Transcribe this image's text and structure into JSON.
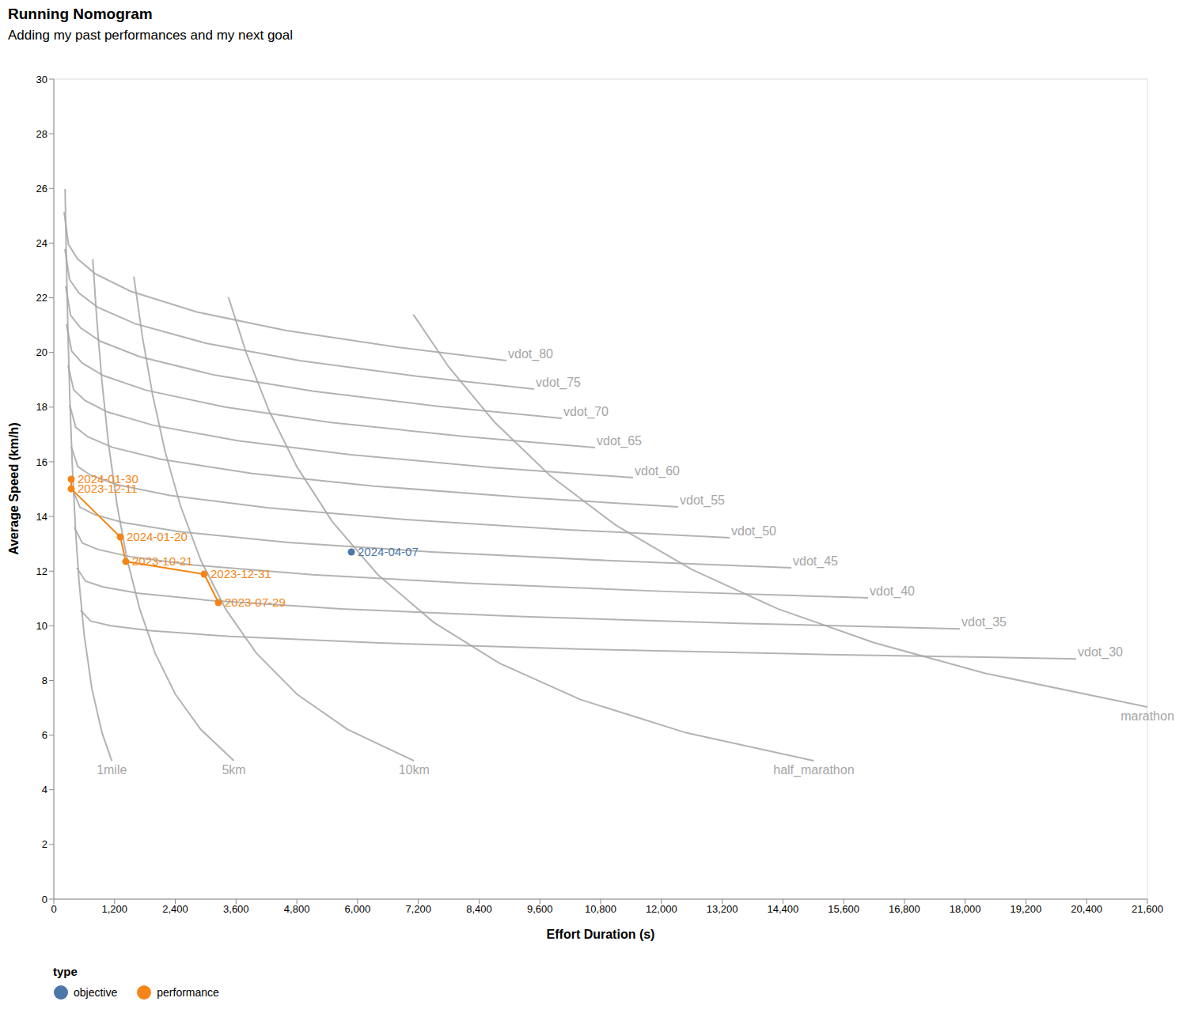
{
  "chart_data": {
    "type": "line",
    "title": "Running Nomogram",
    "subtitle": "Adding my past performances and my next goal",
    "x_label": "Effort Duration (s)",
    "y_label": "Average Speed (km/h)",
    "xlim": [
      0,
      21600
    ],
    "xticks": [
      0,
      {
        "value": 1200,
        "label": "1,200"
      },
      {
        "value": 2400,
        "label": "2,400"
      },
      {
        "value": 3600,
        "label": "3,600"
      },
      {
        "value": 4800,
        "label": "4,800"
      },
      {
        "value": 6000,
        "label": "6,000"
      },
      {
        "value": 7200,
        "label": "7,200"
      },
      {
        "value": 8400,
        "label": "8,400"
      },
      {
        "value": 9600,
        "label": "9,600"
      },
      {
        "value": 10800,
        "label": "10,800"
      },
      {
        "value": 12000,
        "label": "12,000"
      },
      {
        "value": 13200,
        "label": "13,200"
      },
      {
        "value": 14400,
        "label": "14,400"
      },
      {
        "value": 15600,
        "label": "15,600"
      },
      {
        "value": 16800,
        "label": "16,800"
      },
      {
        "value": 18000,
        "label": "18,000"
      },
      {
        "value": 19200,
        "label": "19,200"
      },
      {
        "value": 20400,
        "label": "20,400"
      },
      {
        "value": 21600,
        "label": "21,600"
      }
    ],
    "ylim": [
      0,
      30
    ],
    "yticks": [
      0,
      2,
      4,
      6,
      8,
      10,
      12,
      14,
      16,
      18,
      20,
      22,
      24,
      26,
      28,
      30
    ],
    "legend": "bottom-left",
    "legend_title": "type",
    "vdot_curves": {
      "color": "#a6a6a6",
      "lines": [
        {
          "name": "vdot_80",
          "x": [
            203,
            290,
            465,
            815,
            1514,
            2824,
            4572,
            6756,
            8940
          ],
          "values": [
            25.14,
            23.95,
            23.43,
            22.88,
            22.24,
            21.48,
            20.81,
            20.2,
            19.7
          ]
        },
        {
          "name": "vdot_75",
          "x": [
            219,
            312,
            497,
            868,
            1609,
            2999,
            4853,
            7170,
            9487
          ],
          "values": [
            23.78,
            22.66,
            22.17,
            21.65,
            21.05,
            20.34,
            19.7,
            19.13,
            18.66
          ]
        },
        {
          "name": "vdot_70",
          "x": [
            234,
            332,
            528,
            920,
            1704,
            3174,
            5134,
            7584,
            10034
          ],
          "values": [
            22.42,
            21.36,
            20.9,
            20.41,
            19.84,
            19.17,
            18.58,
            18.03,
            17.59
          ]
        },
        {
          "name": "vdot_65",
          "x": [
            250,
            354,
            563,
            981,
            1816,
            3382,
            5471,
            8081,
            10691
          ],
          "values": [
            21.03,
            20.04,
            19.61,
            19.15,
            18.62,
            18.0,
            17.44,
            16.93,
            16.52
          ]
        },
        {
          "name": "vdot_60",
          "x": [
            281,
            393,
            616,
            1062,
            1955,
            3629,
            5861,
            8651,
            11441
          ],
          "values": [
            19.53,
            18.63,
            18.24,
            17.82,
            17.34,
            16.77,
            16.26,
            15.79,
            15.42
          ]
        },
        {
          "name": "vdot_55",
          "x": [
            313,
            433,
            674,
            1154,
            2116,
            3919,
            6323,
            9327,
            12332
          ],
          "values": [
            18.08,
            17.26,
            16.91,
            16.53,
            16.09,
            15.57,
            15.11,
            14.69,
            14.35
          ]
        },
        {
          "name": "vdot_50",
          "x": [
            344,
            474,
            734,
            1254,
            2295,
            4245,
            6846,
            10097,
            13348
          ],
          "values": [
            16.55,
            15.82,
            15.5,
            15.16,
            14.77,
            14.31,
            13.9,
            13.52,
            13.22
          ]
        },
        {
          "name": "vdot_45",
          "x": [
            375,
            517,
            801,
            1368,
            2504,
            4633,
            7471,
            11019,
            14567
          ],
          "values": [
            14.96,
            14.34,
            14.07,
            13.78,
            13.44,
            13.05,
            12.7,
            12.38,
            12.12
          ]
        },
        {
          "name": "vdot_40",
          "x": [
            406,
            563,
            876,
            1503,
            2758,
            5109,
            8245,
            12164,
            16083
          ],
          "values": [
            13.6,
            13.03,
            12.79,
            12.53,
            12.22,
            11.87,
            11.55,
            11.25,
            11.02
          ]
        },
        {
          "name": "vdot_35",
          "x": [
            453,
            627,
            976,
            1674,
            3069,
            5686,
            9175,
            13535,
            17896
          ],
          "values": [
            12.12,
            11.63,
            11.42,
            11.19,
            10.93,
            10.62,
            10.34,
            10.09,
            9.89
          ]
        },
        {
          "name": "vdot_30",
          "x": [
            531,
            728,
            1121,
            1907,
            3480,
            6430,
            10363,
            15278,
            20194
          ],
          "values": [
            10.56,
            10.17,
            10.0,
            9.82,
            9.61,
            9.37,
            9.15,
            8.95,
            8.79
          ]
        }
      ]
    },
    "distance_curves": {
      "color": "#a6a6a6",
      "lines": [
        {
          "name": "1mile",
          "x": [
            223,
            250,
            280,
            320,
            370,
            430,
            500,
            600,
            750,
            950,
            1145
          ],
          "values": [
            25.98,
            23.17,
            20.69,
            18.1,
            15.66,
            13.47,
            11.59,
            9.66,
            7.72,
            6.1,
            5.06
          ]
        },
        {
          "name": "5km",
          "x": [
            769,
            850,
            950,
            1080,
            1250,
            1450,
            1700,
            2000,
            2400,
            2900,
            3557
          ],
          "values": [
            23.41,
            21.18,
            18.95,
            16.67,
            14.4,
            12.41,
            10.59,
            9.0,
            7.5,
            6.21,
            5.06
          ]
        },
        {
          "name": "10km",
          "x": [
            1581,
            1750,
            1950,
            2200,
            2500,
            2900,
            3400,
            4000,
            4800,
            5800,
            7115
          ],
          "values": [
            22.77,
            20.57,
            18.46,
            16.36,
            14.4,
            12.41,
            10.59,
            9.0,
            7.5,
            6.21,
            5.06
          ]
        },
        {
          "name": "half_marathon",
          "x": [
            3449,
            3800,
            4250,
            4800,
            5500,
            6400,
            7500,
            8800,
            10400,
            12500,
            15011
          ],
          "values": [
            22.02,
            19.99,
            17.87,
            15.82,
            13.81,
            11.87,
            10.13,
            8.63,
            7.3,
            6.08,
            5.06
          ]
        },
        {
          "name": "marathon",
          "x": [
            7100,
            7800,
            8700,
            9800,
            11100,
            12600,
            14300,
            16200,
            18400,
            21600
          ],
          "values": [
            21.39,
            19.47,
            17.46,
            15.5,
            13.68,
            12.06,
            10.62,
            9.38,
            8.26,
            7.03
          ]
        }
      ]
    },
    "series": [
      {
        "name": "objective",
        "type": "scatter",
        "marker": "circle",
        "color": "#4c78a8",
        "x": [
          5877
        ],
        "values": [
          12.7
        ],
        "labels": [
          "2024-04-07"
        ]
      },
      {
        "name": "performance",
        "type": "line",
        "marker": "circle",
        "color": "#f58518",
        "x": [
          344,
          344,
          1313,
          1422,
          2970,
          3251
        ],
        "values": [
          15.36,
          15.01,
          13.25,
          12.35,
          11.89,
          10.85
        ],
        "labels": [
          "2024-01-30",
          "2023-12-11",
          "2024-01-20",
          "2023-10-21",
          "2023-12-31",
          "2023-07-29"
        ]
      }
    ]
  }
}
